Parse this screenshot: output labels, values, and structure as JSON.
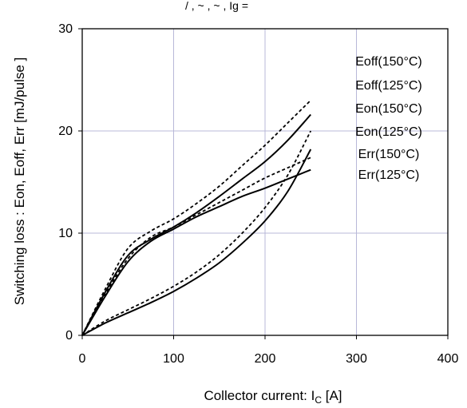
{
  "header_fragment": "/ , ~ , ~ , Ig =",
  "chart_data": {
    "type": "line",
    "xlabel": "Collector current: I",
    "xlabel_sub": "C",
    "xlabel_unit": " [A]",
    "ylabel": "Switching loss : Eon, Eoff, Err [mJ/pulse ]",
    "xlim": [
      0,
      400
    ],
    "ylim": [
      0,
      30
    ],
    "xticks": [
      0,
      100,
      200,
      300,
      400
    ],
    "yticks": [
      0,
      10,
      20,
      30
    ],
    "grid": true,
    "legend_position": "right",
    "series": [
      {
        "name": "Eoff(150°C)",
        "style": "solid",
        "x": [
          0,
          25,
          50,
          75,
          100,
          125,
          150,
          175,
          200,
          225,
          250
        ],
        "y": [
          0,
          3.8,
          7.2,
          9.2,
          10.4,
          11.6,
          12.6,
          13.6,
          14.4,
          15.3,
          16.2
        ]
      },
      {
        "name": "Eoff(125°C)",
        "style": "dashed",
        "x": [
          0,
          25,
          50,
          75,
          100,
          125,
          150,
          175,
          200,
          225,
          250
        ],
        "y": [
          0,
          4.0,
          7.5,
          9.6,
          10.6,
          11.8,
          13.0,
          14.2,
          15.4,
          16.4,
          17.4
        ]
      },
      {
        "name": "Eon(150°C)",
        "style": "solid",
        "x": [
          0,
          25,
          50,
          75,
          100,
          125,
          150,
          175,
          200,
          225,
          250
        ],
        "y": [
          0,
          4.2,
          7.8,
          9.4,
          10.6,
          12.0,
          13.6,
          15.3,
          17.0,
          19.1,
          21.6
        ]
      },
      {
        "name": "Eon(125°C)",
        "style": "dashed",
        "x": [
          0,
          25,
          50,
          75,
          100,
          125,
          150,
          175,
          200,
          225,
          250
        ],
        "y": [
          0,
          4.5,
          8.5,
          10.2,
          11.4,
          12.9,
          14.6,
          16.6,
          18.6,
          20.8,
          23.0
        ]
      },
      {
        "name": "Err(150°C)",
        "style": "solid",
        "x": [
          0,
          25,
          50,
          75,
          100,
          125,
          150,
          175,
          200,
          225,
          250
        ],
        "y": [
          0,
          1.2,
          2.2,
          3.2,
          4.3,
          5.6,
          7.1,
          9.0,
          11.2,
          14.1,
          18.2
        ]
      },
      {
        "name": "Err(125°C)",
        "style": "dashed",
        "x": [
          0,
          25,
          50,
          75,
          100,
          125,
          150,
          175,
          200,
          225,
          250
        ],
        "y": [
          0,
          1.4,
          2.5,
          3.6,
          4.8,
          6.2,
          7.9,
          10.0,
          12.5,
          15.7,
          20.0
        ]
      }
    ]
  }
}
